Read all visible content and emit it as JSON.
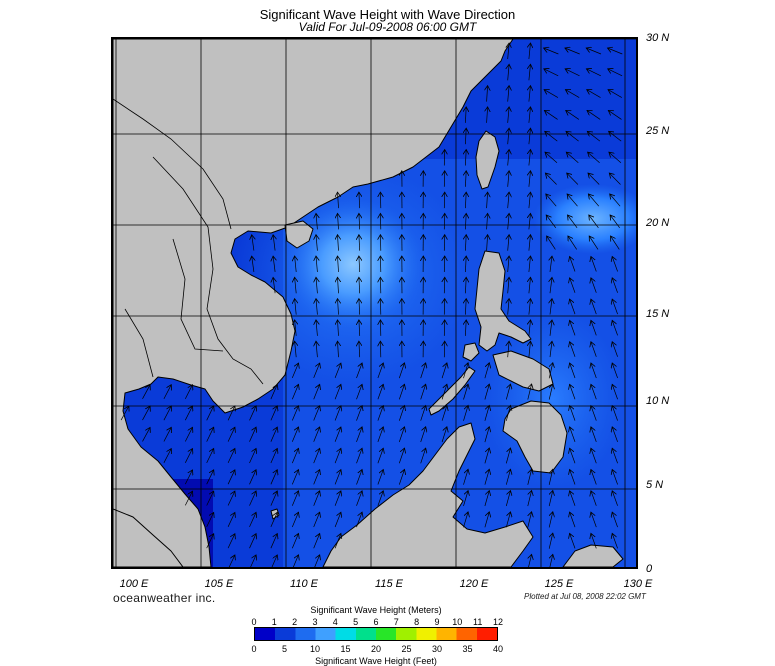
{
  "title": "Significant Wave Height with Wave Direction",
  "subtitle": "Valid For Jul-09-2008 06:00 GMT",
  "lat_labels": [
    "30 N",
    "25 N",
    "20 N",
    "15 N",
    "10 N",
    "5 N",
    "0"
  ],
  "lon_labels": [
    "100 E",
    "105 E",
    "110 E",
    "115 E",
    "120 E",
    "125 E",
    "130 E"
  ],
  "brand": "oceanweather inc.",
  "plotted_text": "Plotted at Jul 08, 2008 22:02 GMT",
  "colorbar": {
    "meters_title": "Significant Wave Height (Meters)",
    "meters_ticks": [
      "0",
      "1",
      "2",
      "3",
      "4",
      "5",
      "6",
      "7",
      "8",
      "9",
      "10",
      "11",
      "12"
    ],
    "feet_title": "Significant Wave Height (Feet)",
    "feet_ticks": [
      "0",
      "5",
      "10",
      "15",
      "20",
      "25",
      "30",
      "35",
      "40"
    ],
    "colors": [
      "#0000c8",
      "#0a3bd8",
      "#1e6cf0",
      "#3fa0ff",
      "#00dce6",
      "#00e08c",
      "#28e628",
      "#a0f000",
      "#f0f000",
      "#ffb400",
      "#ff6400",
      "#ff1e00"
    ]
  },
  "map": {
    "lat_range": [
      0,
      30
    ],
    "lon_range": [
      99,
      130
    ],
    "land_color": "#c0c0c0",
    "grid_color": "#000000",
    "arrow_color": "#000000"
  }
}
